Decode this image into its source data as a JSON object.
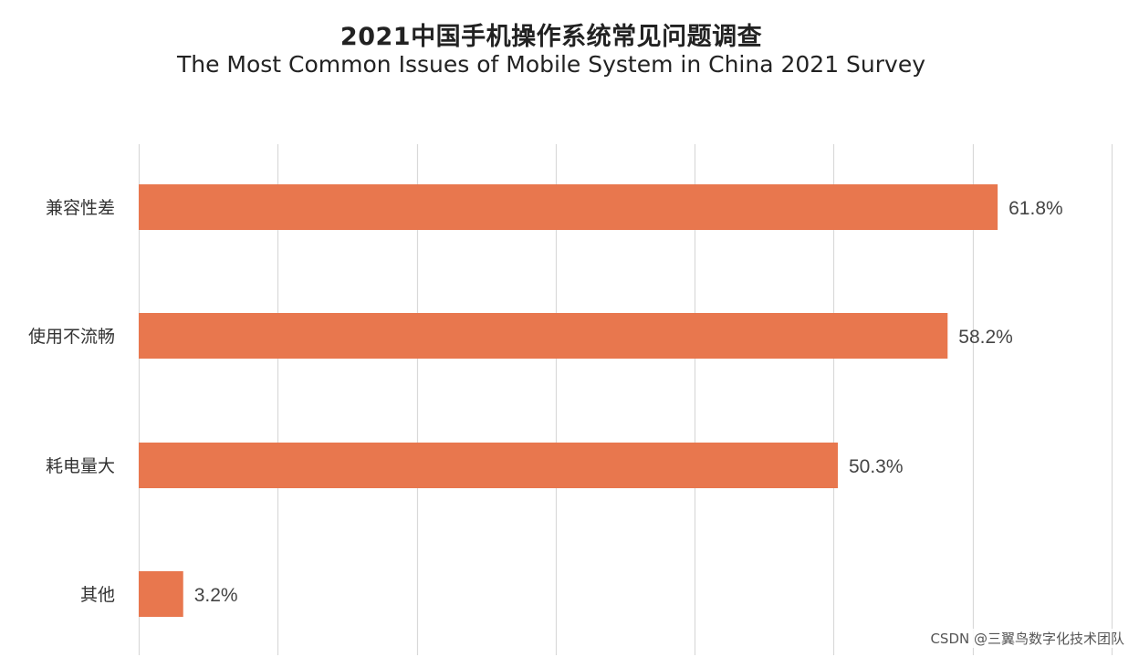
{
  "chart_data": {
    "type": "bar",
    "orientation": "horizontal",
    "title": "2021中国手机操作系统常见问题调查",
    "subtitle": "The Most Common Issues of Mobile System in China 2021 Survey",
    "categories": [
      "兼容性差",
      "使用不流畅",
      "耗电量大",
      "其他"
    ],
    "values": [
      61.8,
      58.2,
      50.3,
      3.2
    ],
    "data_labels": [
      "61.8%",
      "58.2%",
      "50.3%",
      "3.2%"
    ],
    "xlim": [
      0,
      70
    ],
    "grid_step": 10,
    "grid": true,
    "bar_color": "#E8774E",
    "xlabel": "",
    "ylabel": ""
  },
  "watermark": "CSDN @三翼鸟数字化技术团队"
}
